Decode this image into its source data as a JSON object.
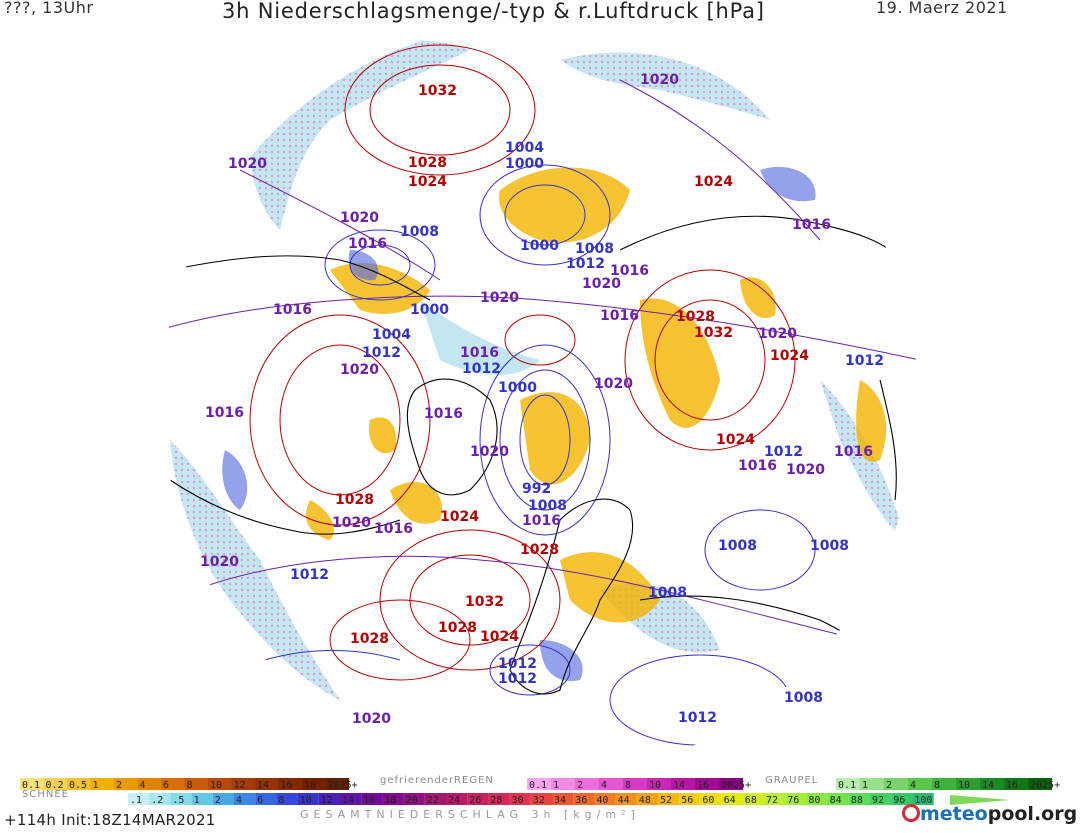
{
  "header": {
    "left": "???, 13Uhr",
    "title": "3h Niederschlagsmenge/-typ & r.Luftdruck [hPa]",
    "date": "19. Maerz 2021"
  },
  "isobar_labels": [
    {
      "text": "1032",
      "color": "#b30000"
    },
    {
      "text": "1028",
      "color": "#b30000"
    },
    {
      "text": "1024",
      "color": "#b30000"
    },
    {
      "text": "1020",
      "color": "#6a1fb0"
    },
    {
      "text": "1020",
      "color": "#6a1fb0"
    },
    {
      "text": "1016",
      "color": "#6a1fb0"
    },
    {
      "text": "1008",
      "color": "#3333cc"
    },
    {
      "text": "1004",
      "color": "#3333cc"
    },
    {
      "text": "1000",
      "color": "#3333cc"
    },
    {
      "text": "1020",
      "color": "#6a1fb0"
    },
    {
      "text": "1024",
      "color": "#b30000"
    },
    {
      "text": "1016",
      "color": "#6a1fb0"
    },
    {
      "text": "1000",
      "color": "#3333cc"
    },
    {
      "text": "1008",
      "color": "#3333cc"
    },
    {
      "text": "1012",
      "color": "#3333cc"
    },
    {
      "text": "1016",
      "color": "#6a1fb0"
    },
    {
      "text": "1020",
      "color": "#6a1fb0"
    },
    {
      "text": "1016",
      "color": "#6a1fb0"
    },
    {
      "text": "1000",
      "color": "#3333cc"
    },
    {
      "text": "1020",
      "color": "#6a1fb0"
    },
    {
      "text": "1016",
      "color": "#6a1fb0"
    },
    {
      "text": "1004",
      "color": "#3333cc"
    },
    {
      "text": "1012",
      "color": "#3333cc"
    },
    {
      "text": "1020",
      "color": "#6a1fb0"
    },
    {
      "text": "1016",
      "color": "#6a1fb0"
    },
    {
      "text": "1012",
      "color": "#3333cc"
    },
    {
      "text": "1000",
      "color": "#3333cc"
    },
    {
      "text": "1016",
      "color": "#6a1fb0"
    },
    {
      "text": "1028",
      "color": "#b30000"
    },
    {
      "text": "1032",
      "color": "#b30000"
    },
    {
      "text": "1020",
      "color": "#6a1fb0"
    },
    {
      "text": "1024",
      "color": "#b30000"
    },
    {
      "text": "1012",
      "color": "#3333cc"
    },
    {
      "text": "1020",
      "color": "#6a1fb0"
    },
    {
      "text": "1016",
      "color": "#6a1fb0"
    },
    {
      "text": "1024",
      "color": "#b30000"
    },
    {
      "text": "1012",
      "color": "#3333cc"
    },
    {
      "text": "1016",
      "color": "#6a1fb0"
    },
    {
      "text": "1020",
      "color": "#6a1fb0"
    },
    {
      "text": "1016",
      "color": "#6a1fb0"
    },
    {
      "text": "1020",
      "color": "#6a1fb0"
    },
    {
      "text": "992",
      "color": "#3333cc"
    },
    {
      "text": "1008",
      "color": "#3333cc"
    },
    {
      "text": "1016",
      "color": "#6a1fb0"
    },
    {
      "text": "1028",
      "color": "#b30000"
    },
    {
      "text": "1024",
      "color": "#b30000"
    },
    {
      "text": "1020",
      "color": "#6a1fb0"
    },
    {
      "text": "1016",
      "color": "#6a1fb0"
    },
    {
      "text": "1028",
      "color": "#b30000"
    },
    {
      "text": "1008",
      "color": "#3333cc"
    },
    {
      "text": "1008",
      "color": "#3333cc"
    },
    {
      "text": "1020",
      "color": "#6a1fb0"
    },
    {
      "text": "1012",
      "color": "#3333cc"
    },
    {
      "text": "1032",
      "color": "#b30000"
    },
    {
      "text": "1028",
      "color": "#b30000"
    },
    {
      "text": "1024",
      "color": "#b30000"
    },
    {
      "text": "1028",
      "color": "#b30000"
    },
    {
      "text": "1012",
      "color": "#3333cc"
    },
    {
      "text": "1012",
      "color": "#3333cc"
    },
    {
      "text": "1008",
      "color": "#3333cc"
    },
    {
      "text": "1008",
      "color": "#3333cc"
    },
    {
      "text": "1012",
      "color": "#3333cc"
    },
    {
      "text": "1020",
      "color": "#6a1fb0"
    }
  ],
  "legend": {
    "snow": {
      "label": "SCHNEE",
      "values": [
        "0.1",
        "0.2",
        "0.5",
        "1",
        "2",
        "4",
        "6",
        "8",
        "10",
        "12",
        "14",
        "16",
        "18",
        "2025+"
      ]
    },
    "freezing_rain": {
      "label": "gefrierenderREGEN",
      "values": [
        "0.1",
        "1",
        "2",
        "4",
        "8",
        "10",
        "14",
        "16",
        "2025+"
      ]
    },
    "graupel": {
      "label": "GRAUPEL",
      "values": [
        "0.1",
        "1",
        "2",
        "4",
        "8",
        "10",
        "14",
        "16",
        "2025+"
      ]
    },
    "total": {
      "label": "GESAMTNIEDERSCHLAG 3h [kg/m²]",
      "values": [
        ".1",
        ".2",
        ".5",
        "1",
        "2",
        "4",
        "6",
        "8",
        "10",
        "12",
        "14",
        "16",
        "18",
        "20",
        "22",
        "24",
        "26",
        "28",
        "30",
        "32",
        "34",
        "36",
        "40",
        "44",
        "48",
        "52",
        "56",
        "60",
        "64",
        "68",
        "72",
        "76",
        "80",
        "84",
        "88",
        "92",
        "96",
        "100"
      ]
    }
  },
  "footer": {
    "run": "+114h Init:18Z14MAR2021",
    "total_label": "GESAMTNIEDERSCHLAG 3h [kg/m²]",
    "logo_a": "meteo",
    "logo_b": "pool.org"
  },
  "colors": {
    "high": "#b30000",
    "mid": "#6a1fb0",
    "low": "#3333cc",
    "coast": "#000000",
    "snow": "#9fd6e6",
    "rain": "#f4b400",
    "freezing": "#e85ed0",
    "graupel": "#3cb43c"
  }
}
